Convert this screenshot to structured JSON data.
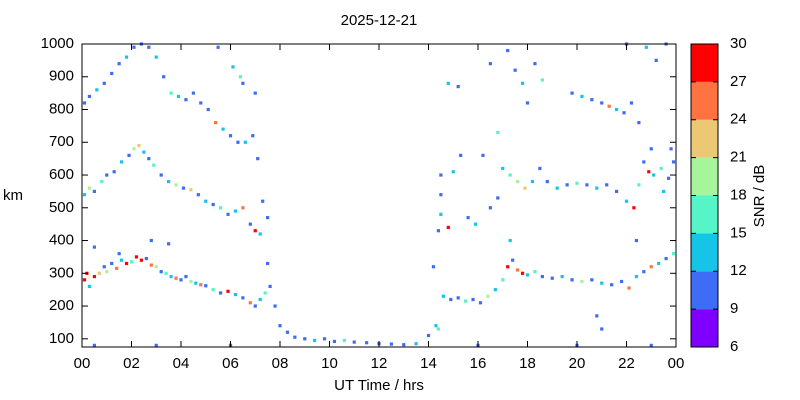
{
  "chart_data": {
    "type": "scatter",
    "title": "2025-12-21",
    "x_label": "UT Time / hrs",
    "y_label": "km",
    "xlim": [
      0,
      24
    ],
    "xticks": [
      {
        "value": 0,
        "label": "00"
      },
      {
        "value": 2,
        "label": "02"
      },
      {
        "value": 4,
        "label": "04"
      },
      {
        "value": 6,
        "label": "06"
      },
      {
        "value": 8,
        "label": "08"
      },
      10,
      12,
      14,
      16,
      18,
      20,
      22,
      {
        "value": 24,
        "label": "00"
      }
    ],
    "ylim": [
      75,
      1000
    ],
    "yticks": [
      100,
      200,
      300,
      400,
      500,
      600,
      700,
      800,
      900,
      1000
    ],
    "colorbar": {
      "label": "SNR / dB",
      "lim": [
        6,
        30
      ],
      "ticks": [
        6,
        9,
        12,
        15,
        18,
        21,
        24,
        27,
        30
      ],
      "colors": [
        "#7f00ff",
        "#3f6cf5",
        "#16c4e8",
        "#55f5c8",
        "#a7f59a",
        "#ecc774",
        "#ff7341",
        "#ff0000"
      ]
    },
    "x": [
      0.1,
      0.2,
      0.3,
      0.5,
      0.7,
      0.9,
      1.0,
      1.2,
      1.4,
      1.6,
      1.8,
      2.0,
      2.2,
      2.4,
      2.6,
      2.8,
      3.0,
      3.2,
      3.4,
      3.6,
      3.8,
      4.0,
      4.2,
      4.4,
      4.6,
      4.8,
      5.0,
      5.3,
      5.6,
      5.9,
      6.2,
      6.5,
      6.8,
      7.0,
      7.2,
      7.4,
      7.6,
      7.8,
      8.0,
      8.3,
      0.5,
      1.5,
      2.8,
      3.5,
      7.5,
      8.6,
      9.0,
      9.4,
      9.8,
      10.2,
      10.6,
      11.0,
      11.5,
      12.0,
      12.5,
      13.0,
      13.5,
      14.0,
      14.3,
      14.4,
      0.5,
      3.0,
      6.0,
      16.0,
      20.0,
      23.0,
      14.6,
      14.9,
      15.2,
      15.5,
      15.8,
      16.1,
      16.4,
      16.7,
      17.0,
      17.2,
      17.4,
      17.6,
      17.8,
      18.0,
      18.3,
      18.6,
      19.0,
      19.4,
      19.8,
      20.2,
      20.6,
      21.0,
      21.4,
      21.8,
      22.1,
      22.4,
      22.7,
      23.0,
      23.3,
      23.6,
      23.9,
      17.3,
      20.8,
      21.0,
      14.2,
      22.4,
      0.1,
      0.3,
      0.5,
      0.8,
      1.0,
      1.3,
      1.6,
      1.9,
      2.1,
      2.3,
      2.5,
      2.7,
      2.9,
      3.2,
      3.5,
      3.8,
      4.1,
      4.4,
      4.7,
      5.0,
      5.3,
      5.6,
      5.9,
      6.2,
      6.5,
      6.8,
      7.0,
      7.2,
      7.5,
      7.3,
      14.4,
      14.5,
      14.5,
      14.5,
      14.8,
      15.0,
      15.3,
      15.6,
      15.9,
      16.2,
      16.5,
      16.8,
      17.0,
      17.3,
      17.6,
      17.9,
      18.2,
      18.5,
      18.8,
      19.2,
      19.6,
      20.0,
      20.4,
      20.8,
      21.2,
      21.6,
      22.0,
      22.3,
      22.5,
      22.7,
      22.9,
      23.1,
      23.4,
      23.7,
      23.9,
      23.5,
      23.8,
      0.1,
      0.3,
      0.6,
      0.9,
      1.2,
      1.5,
      1.8,
      2.1,
      2.4,
      2.7,
      3.0,
      3.3,
      3.6,
      3.9,
      4.2,
      4.5,
      4.8,
      5.1,
      5.4,
      5.7,
      6.0,
      6.3,
      6.6,
      6.9,
      7.1,
      6.5,
      5.5,
      6.1,
      6.4,
      7.0,
      14.8,
      15.2,
      16.5,
      16.8,
      17.2,
      17.5,
      17.8,
      18.0,
      18.3,
      18.6,
      19.8,
      20.2,
      20.6,
      21.0,
      21.3,
      21.6,
      21.9,
      22.2,
      22.0,
      22.8,
      23.2,
      23.6,
      22.5,
      23.0
    ],
    "y": [
      280,
      300,
      260,
      290,
      300,
      320,
      305,
      330,
      315,
      340,
      330,
      335,
      350,
      340,
      345,
      325,
      320,
      305,
      300,
      290,
      285,
      280,
      290,
      275,
      270,
      265,
      262,
      250,
      240,
      245,
      235,
      225,
      210,
      200,
      220,
      240,
      260,
      200,
      140,
      120,
      380,
      360,
      400,
      390,
      330,
      105,
      100,
      95,
      100,
      92,
      95,
      90,
      88,
      85,
      84,
      82,
      85,
      110,
      140,
      130,
      80,
      80,
      80,
      80,
      80,
      80,
      230,
      220,
      225,
      215,
      220,
      210,
      230,
      250,
      280,
      320,
      340,
      310,
      300,
      295,
      305,
      290,
      285,
      290,
      280,
      275,
      280,
      270,
      265,
      275,
      255,
      290,
      305,
      320,
      330,
      345,
      360,
      400,
      170,
      130,
      320,
      400,
      540,
      560,
      550,
      580,
      600,
      610,
      640,
      660,
      680,
      690,
      670,
      650,
      630,
      600,
      580,
      570,
      560,
      555,
      540,
      520,
      510,
      500,
      480,
      490,
      500,
      450,
      430,
      420,
      470,
      520,
      430,
      480,
      540,
      600,
      440,
      610,
      660,
      470,
      450,
      660,
      500,
      530,
      620,
      600,
      580,
      560,
      580,
      620,
      580,
      560,
      570,
      575,
      570,
      560,
      570,
      550,
      520,
      500,
      570,
      640,
      610,
      600,
      620,
      590,
      640,
      550,
      680,
      820,
      840,
      860,
      880,
      910,
      940,
      960,
      990,
      1000,
      990,
      960,
      900,
      850,
      840,
      830,
      850,
      820,
      800,
      760,
      740,
      720,
      700,
      700,
      720,
      650,
      880,
      990,
      930,
      900,
      850,
      880,
      870,
      940,
      730,
      980,
      920,
      880,
      820,
      940,
      890,
      850,
      840,
      830,
      820,
      810,
      800,
      790,
      820,
      1000,
      990,
      950,
      1000,
      760,
      680
    ],
    "snr": [
      28,
      27,
      12,
      27,
      21,
      10,
      18,
      11,
      24,
      12,
      27,
      15,
      28,
      28,
      11,
      24,
      18,
      10,
      15,
      12,
      24,
      11,
      10,
      18,
      12,
      24,
      11,
      15,
      10,
      27,
      12,
      11,
      24,
      10,
      12,
      15,
      10,
      11,
      10,
      11,
      10,
      11,
      10,
      9,
      11,
      11,
      10,
      12,
      10,
      11,
      15,
      10,
      11,
      10,
      11,
      10,
      12,
      11,
      12,
      15,
      10,
      10,
      11,
      10,
      10,
      11,
      12,
      11,
      10,
      15,
      11,
      10,
      18,
      12,
      15,
      27,
      11,
      24,
      27,
      12,
      15,
      11,
      10,
      12,
      11,
      18,
      10,
      12,
      11,
      10,
      24,
      12,
      11,
      24,
      12,
      11,
      15,
      12,
      10,
      11,
      10,
      9,
      12,
      18,
      11,
      15,
      10,
      11,
      12,
      10,
      18,
      21,
      12,
      11,
      15,
      10,
      12,
      18,
      11,
      21,
      10,
      12,
      11,
      15,
      10,
      12,
      24,
      11,
      27,
      12,
      10,
      11,
      11,
      12,
      10,
      11,
      27,
      12,
      10,
      11,
      12,
      10,
      11,
      10,
      12,
      15,
      18,
      21,
      12,
      11,
      10,
      12,
      11,
      15,
      10,
      12,
      11,
      10,
      12,
      27,
      15,
      11,
      27,
      12,
      15,
      10,
      11,
      12,
      10,
      10,
      11,
      12,
      10,
      11,
      10,
      12,
      10,
      11,
      10,
      12,
      11,
      15,
      12,
      11,
      10,
      11,
      10,
      24,
      12,
      11,
      10,
      12,
      11,
      10,
      11,
      10,
      12,
      15,
      11,
      12,
      10,
      11,
      15,
      10,
      11,
      12,
      10,
      11,
      15,
      10,
      12,
      11,
      10,
      24,
      12,
      11,
      10,
      11,
      12,
      10,
      11,
      10,
      11
    ]
  }
}
